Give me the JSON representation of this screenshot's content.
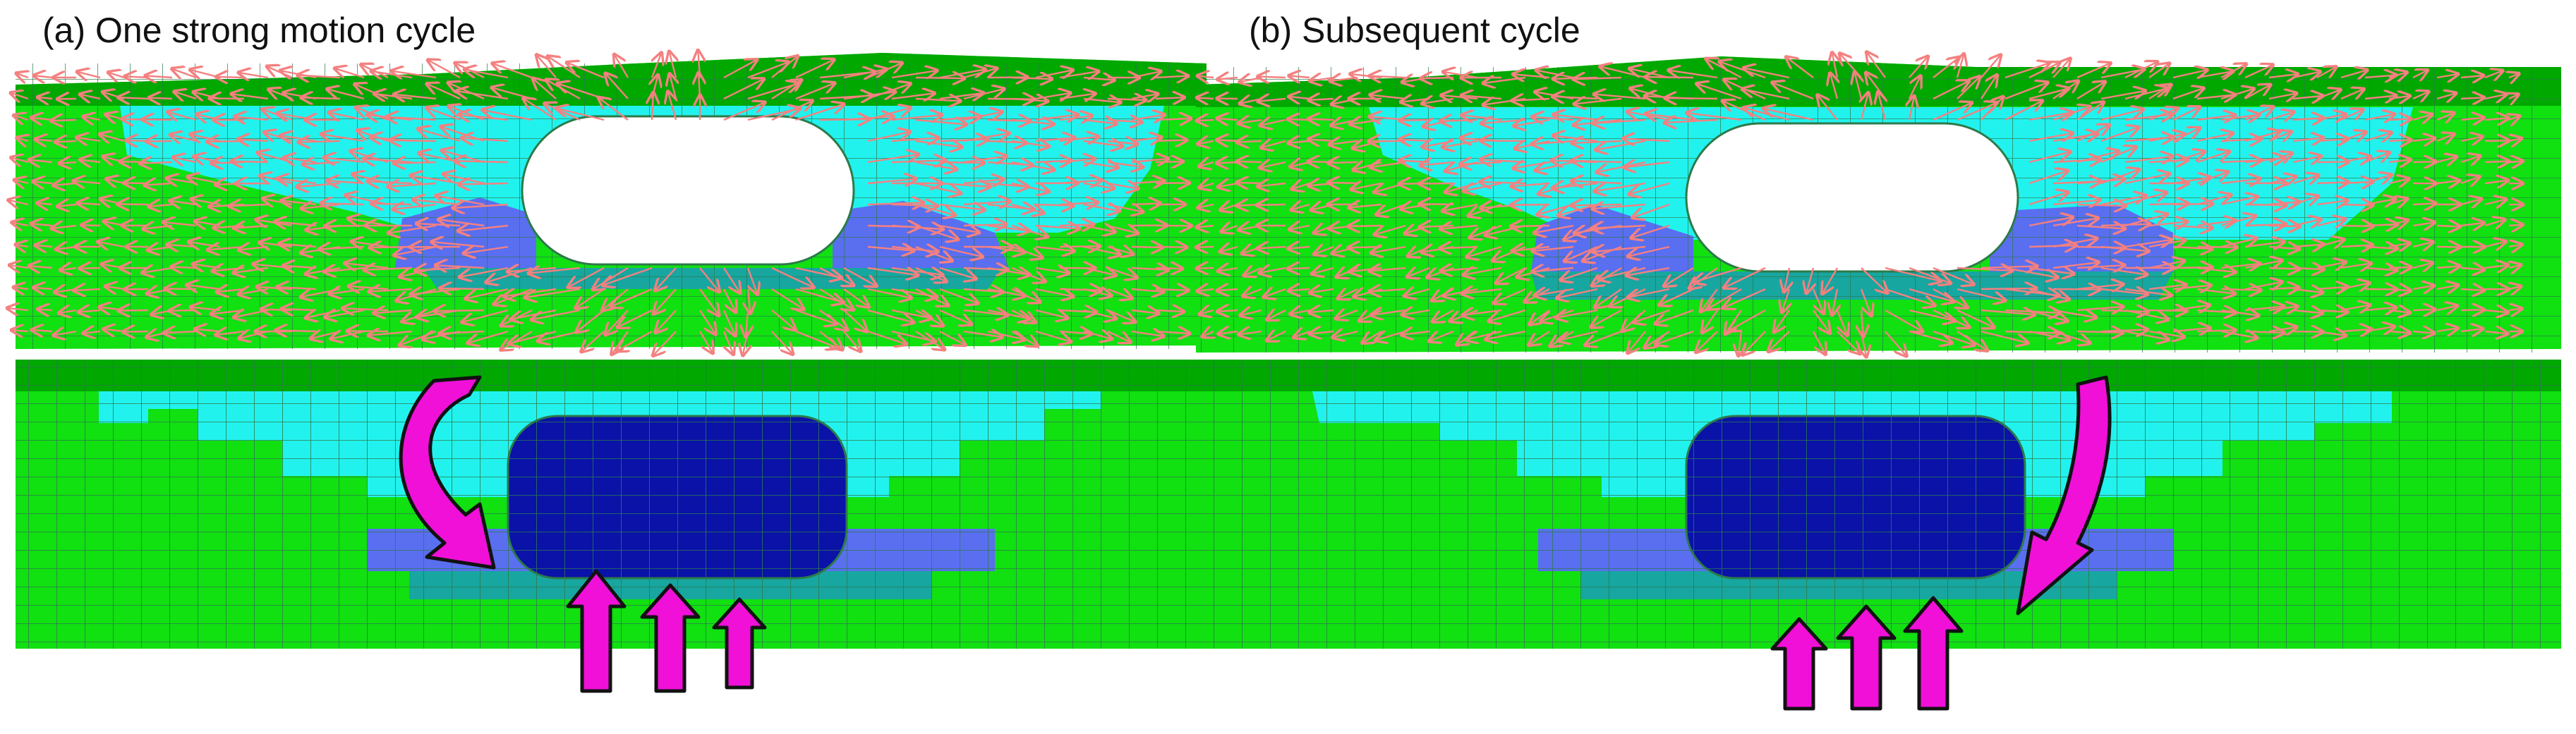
{
  "panels": [
    {
      "id": "a",
      "title": "(a) One strong motion cycle",
      "top_view": "deformed mesh with displacement vectors",
      "bottom_view": "undeformed mesh with motion arrows",
      "curved_arrow_direction": "down-left",
      "upward_arrow_count": 3
    },
    {
      "id": "b",
      "title": "(b) Subsequent cycle",
      "top_view": "deformed mesh with displacement vectors",
      "bottom_view": "undeformed mesh with motion arrows",
      "curved_arrow_direction": "down",
      "upward_arrow_count": 3
    }
  ],
  "colors": {
    "ground": "#11e011",
    "surface_layer": "#00a800",
    "light_zone": "#22f2ee",
    "structure": "#0a12a8",
    "slope_zone": "#5a6ef0",
    "base_zone": "#18a6a0",
    "vector": "#f48080",
    "arrow_fill": "#f010d8",
    "mesh_line": "#2c7a4a"
  }
}
